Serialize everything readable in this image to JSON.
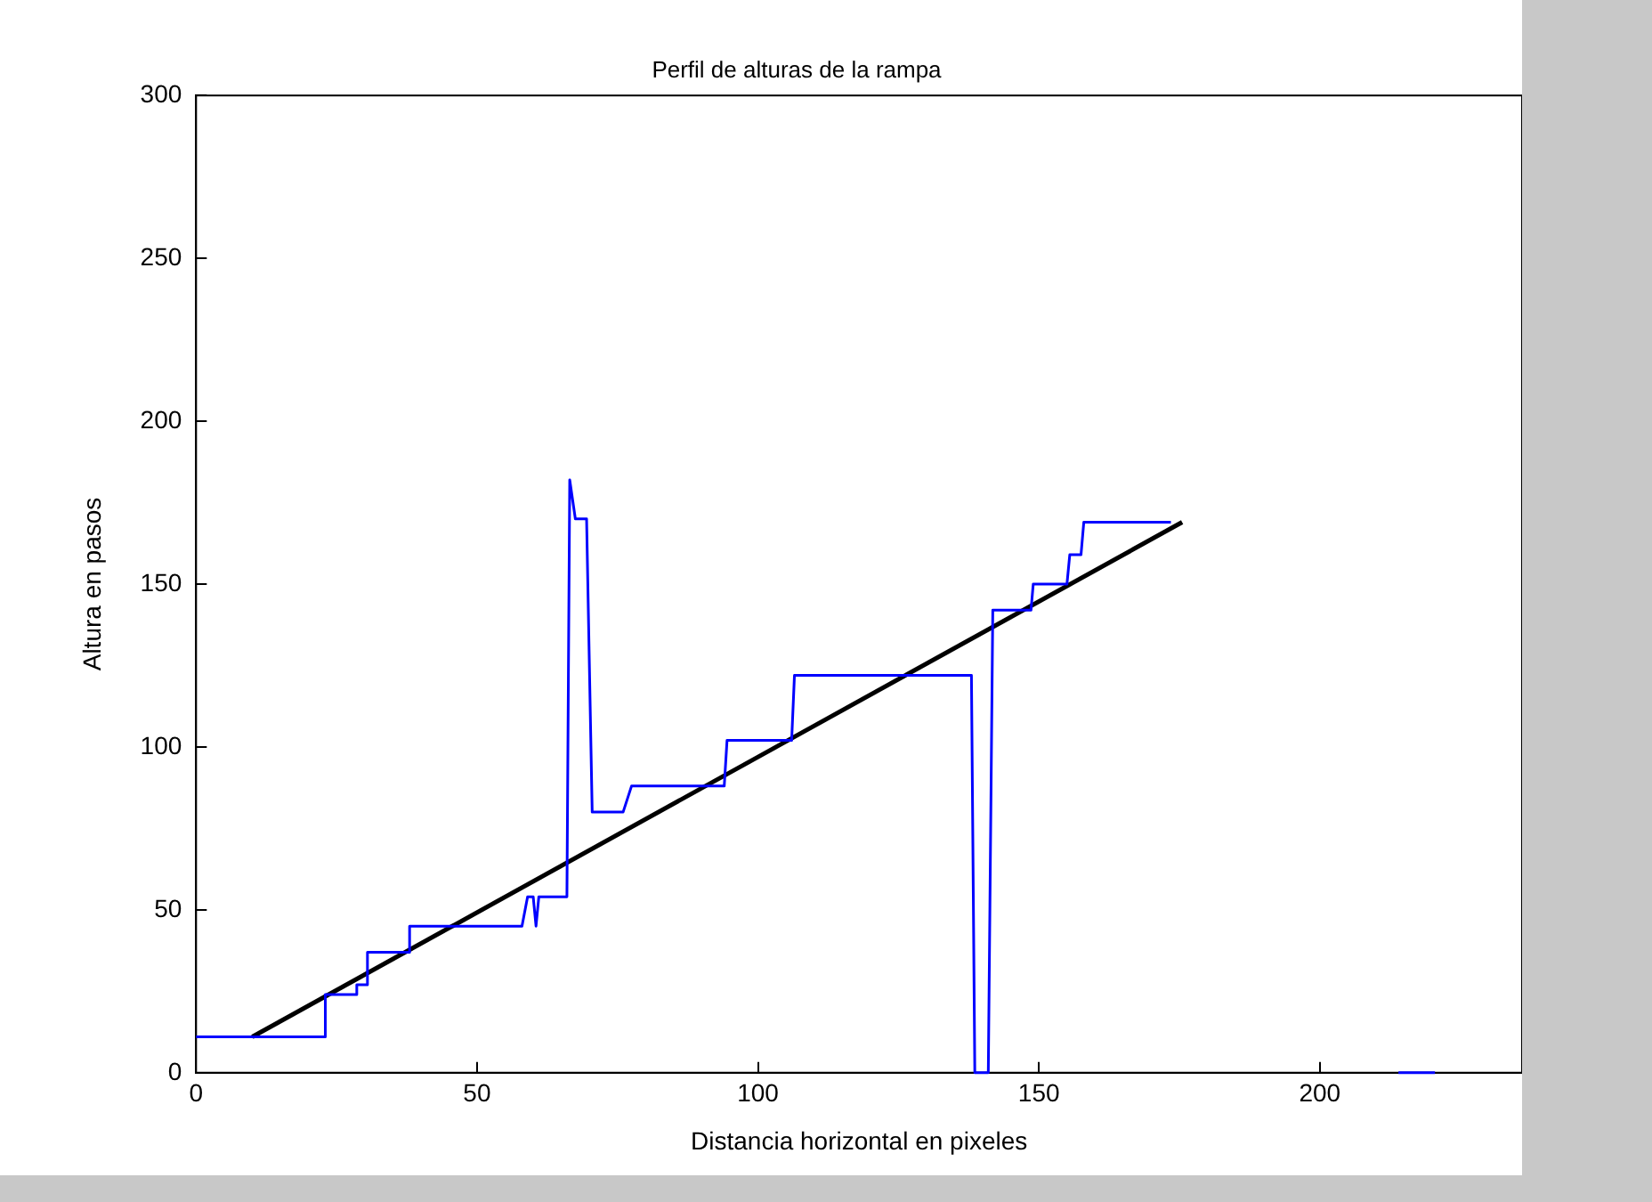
{
  "chart_data": {
    "type": "line",
    "title": "Perfil de alturas de la rampa",
    "xlabel": "Distancia horizontal en pixeles",
    "ylabel": "Altura en pasos",
    "xlim": [
      0,
      236
    ],
    "xticks": [
      0,
      50,
      100,
      150,
      200
    ],
    "ylim": [
      0,
      300
    ],
    "yticks": [
      0,
      50,
      100,
      150,
      200,
      250,
      300
    ],
    "grid": false,
    "legend": false,
    "marker": "none",
    "line_style": "solid",
    "series": [
      {
        "color": "#0000ff",
        "x": [
          0,
          23,
          23,
          28.6,
          28.6,
          30.5,
          30.5,
          38,
          38,
          58,
          59,
          60,
          60.5,
          61,
          66,
          66.5,
          67.5,
          69.5,
          70.5,
          76,
          77.5,
          94,
          94.5,
          106,
          106.5,
          138,
          138.6,
          141,
          141.8,
          148.6,
          149,
          155,
          155.5,
          157.5,
          158,
          173.5,
          190,
          214,
          220.5
        ],
        "values": [
          11,
          11,
          24,
          24,
          27,
          27,
          37,
          37,
          45,
          45,
          54,
          54,
          45,
          54,
          54,
          182,
          170,
          170,
          80,
          80,
          88,
          88,
          102,
          102,
          122,
          122,
          0,
          0,
          142,
          142,
          150,
          150,
          159,
          159,
          169,
          169,
          null,
          0,
          0
        ]
      },
      {
        "color": "#000000",
        "x": [
          10,
          175.5
        ],
        "values": [
          11,
          169
        ]
      }
    ]
  }
}
